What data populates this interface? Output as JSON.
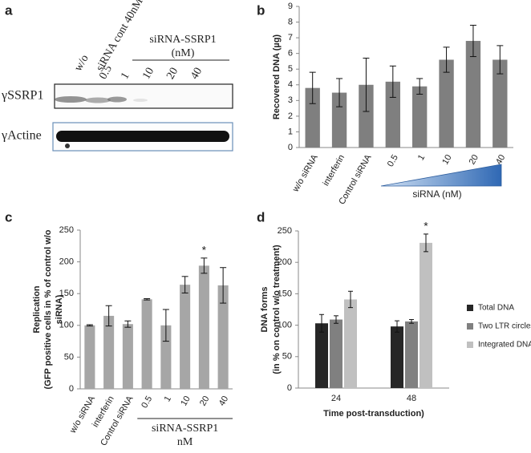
{
  "panel_a": {
    "label": "a",
    "lanes": [
      "w/o",
      "siRNA cont 40nM",
      "0.5",
      "1",
      "10",
      "20",
      "40"
    ],
    "group_label": "siRNA-SSRP1",
    "group_unit": "(nM)",
    "rows": [
      "γSSRP1",
      "γActine"
    ]
  },
  "chart_data": [
    {
      "type": "bar",
      "label": "b",
      "ylabel": [
        "Recovered DNA (µg)"
      ],
      "categories": [
        "w/o siRNA",
        "interferin",
        "Control siRNA",
        "0.5",
        "1",
        "10",
        "20",
        "40"
      ],
      "values": [
        3.8,
        3.5,
        4.0,
        4.2,
        3.9,
        5.6,
        6.8,
        5.6
      ],
      "errors": [
        1.0,
        0.9,
        1.7,
        1.0,
        0.5,
        0.8,
        1.0,
        0.9
      ],
      "color": "#7f7f7f",
      "ylim": [
        0,
        9
      ],
      "yticks": [
        0,
        1,
        2,
        3,
        4,
        5,
        6,
        7,
        8,
        9
      ],
      "annotation": "siRNA (nM)"
    },
    {
      "type": "bar",
      "label": "c",
      "ylabel": [
        "Replication",
        "(GFP positive cells in % of control w/o",
        "siRNA)"
      ],
      "categories": [
        "w/o siRNA",
        "interferin",
        "Control siRNA",
        "0.5",
        "1",
        "10",
        "20",
        "40"
      ],
      "values": [
        100,
        115,
        102,
        141,
        100,
        164,
        194,
        163
      ],
      "errors": [
        1,
        16,
        5,
        1,
        25,
        13,
        12,
        28
      ],
      "color": "#a6a6a6",
      "ylim": [
        0,
        250
      ],
      "yticks": [
        0,
        50,
        100,
        150,
        200,
        250
      ],
      "significance_label": "*",
      "group_label": "siRNA-SSRP1",
      "group_unit": "nM"
    },
    {
      "type": "grouped_bar",
      "label": "d",
      "ylabel": [
        "DNA forms",
        "(in % on control w/o treatment)"
      ],
      "xlabel": "Time post-transduction)",
      "categories": [
        "24",
        "48"
      ],
      "series": [
        {
          "name": "Total DNA",
          "color": "#262626",
          "values": [
            103,
            98
          ],
          "errors": [
            14,
            9
          ]
        },
        {
          "name": "Two LTR circles",
          "color": "#808080",
          "values": [
            109,
            106
          ],
          "errors": [
            6,
            3
          ]
        },
        {
          "name": "Integrated DNA",
          "color": "#c0c0c0",
          "values": [
            141,
            231
          ],
          "errors": [
            13,
            14
          ]
        }
      ],
      "ylim": [
        0,
        250
      ],
      "yticks": [
        0,
        50,
        100,
        150,
        200,
        250
      ],
      "significance_label": "*"
    }
  ]
}
